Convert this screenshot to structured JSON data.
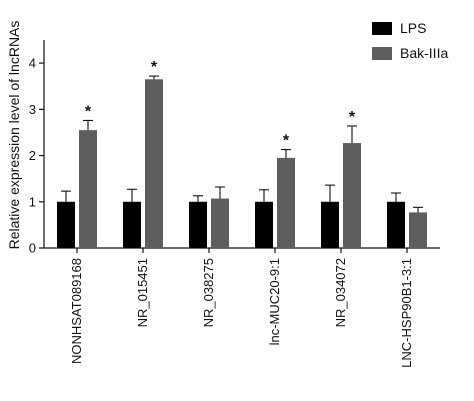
{
  "chart_data": {
    "type": "bar",
    "ylabel": "Relative expression level of lncRNAs",
    "ylim": [
      0,
      4.5
    ],
    "yticks": [
      0,
      1,
      2,
      3,
      4
    ],
    "categories": [
      "NONHSAT089168",
      "NR_015451",
      "NR_038275",
      "lnc-MUC20-9:1",
      "NR_034072",
      "LNC-HSP90B1-3:1"
    ],
    "series": [
      {
        "name": "LPS",
        "color": "#000000",
        "values": [
          1.0,
          1.0,
          1.0,
          1.0,
          1.0,
          1.0
        ],
        "errors": [
          0.23,
          0.27,
          0.13,
          0.26,
          0.36,
          0.19
        ]
      },
      {
        "name": "Bak-IIIa",
        "color": "#5e5e5e",
        "values": [
          2.55,
          3.65,
          1.07,
          1.95,
          2.27,
          0.77
        ],
        "errors": [
          0.21,
          0.07,
          0.25,
          0.18,
          0.37,
          0.11
        ]
      }
    ],
    "significance": [
      {
        "category_index": 0,
        "series_index": 1,
        "text": "*"
      },
      {
        "category_index": 1,
        "series_index": 1,
        "text": "*"
      },
      {
        "category_index": 3,
        "series_index": 1,
        "text": "*"
      },
      {
        "category_index": 4,
        "series_index": 1,
        "text": "*"
      }
    ],
    "legend_position": "top-right"
  }
}
